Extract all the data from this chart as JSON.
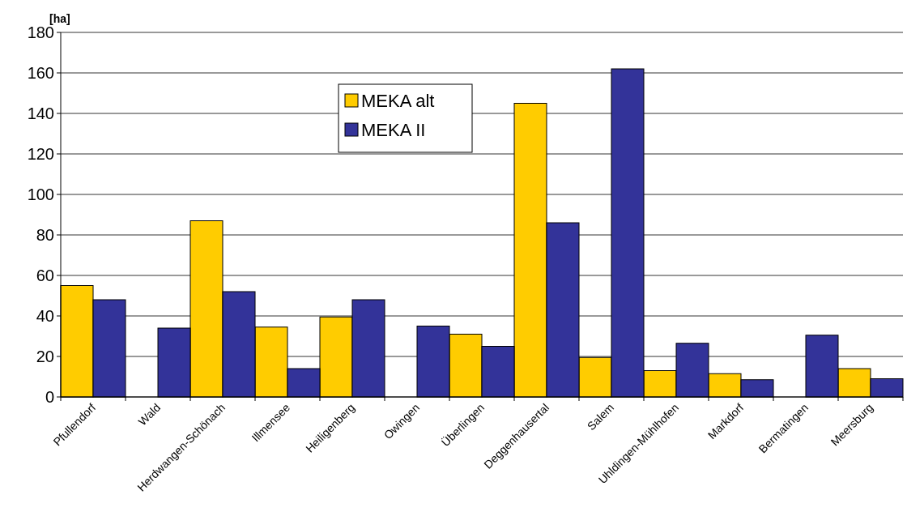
{
  "chart_data": {
    "type": "bar",
    "ylabel": "[ha]",
    "categories": [
      "Pfullendorf",
      "Wald",
      "Herdwangen-Schönach",
      "Illmensee",
      "Heiligenberg",
      "Owingen",
      "Überlingen",
      "Deggenhausertal",
      "Salem",
      "Uhldingen-Mühlhofen",
      "Markdorf",
      "Bermatingen",
      "Meersburg"
    ],
    "series": [
      {
        "name": "MEKA alt",
        "color": "#ffcc00",
        "values": [
          55,
          null,
          87,
          34.5,
          39.5,
          null,
          31,
          145,
          19.5,
          13,
          11.5,
          null,
          14
        ]
      },
      {
        "name": "MEKA II",
        "color": "#333399",
        "values": [
          48,
          34,
          52,
          14,
          48,
          35,
          25,
          86,
          162,
          26.5,
          8.5,
          30.5,
          9
        ]
      }
    ],
    "ylim": [
      0,
      180
    ],
    "yticks": [
      0,
      20,
      40,
      60,
      80,
      100,
      120,
      140,
      160,
      180
    ],
    "grid": "y",
    "legend": "top"
  }
}
